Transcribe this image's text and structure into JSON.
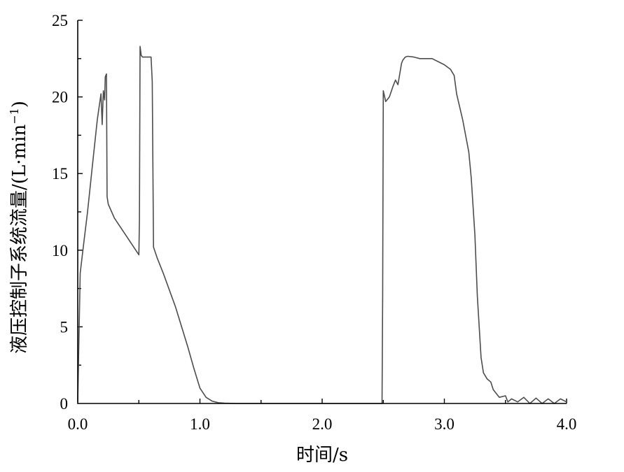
{
  "chart_data": {
    "type": "line",
    "title": "",
    "xlabel": "时间/s",
    "ylabel": "液压控制子系统流量/(L·min",
    "ylabel_sup": "−1",
    "ylabel_close": ")",
    "xlim": [
      0,
      4
    ],
    "ylim": [
      0,
      25
    ],
    "xticks": [
      0,
      1,
      2,
      3,
      4
    ],
    "xtick_labels": [
      "0.0",
      "1.0",
      "2.0",
      "3.0",
      "4.0"
    ],
    "yticks": [
      0,
      5,
      10,
      15,
      20,
      25
    ],
    "ytick_labels": [
      "0",
      "5",
      "10",
      "15",
      "20",
      "25"
    ],
    "grid": false,
    "line_color": "#4d4d4d",
    "series": [
      {
        "x": [
          0.0,
          0.02,
          0.05,
          0.08,
          0.12,
          0.16,
          0.19,
          0.2,
          0.21,
          0.22,
          0.225,
          0.235,
          0.24,
          0.25,
          0.3,
          0.4,
          0.5,
          0.505,
          0.51,
          0.52,
          0.53,
          0.6,
          0.61,
          0.62,
          0.65,
          0.7,
          0.8,
          0.9,
          0.95,
          1.0,
          1.05,
          1.1,
          1.15,
          1.2,
          1.3,
          1.5,
          2.0,
          2.49,
          2.495,
          2.5,
          2.52,
          2.55,
          2.58,
          2.6,
          2.62,
          2.65,
          2.66,
          2.68,
          2.7,
          2.75,
          2.8,
          2.9,
          3.0,
          3.05,
          3.08,
          3.1,
          3.15,
          3.2,
          3.22,
          3.25,
          3.27,
          3.3,
          3.32,
          3.35,
          3.38,
          3.4,
          3.45,
          3.5,
          3.52,
          3.55,
          3.6,
          3.65,
          3.7,
          3.75,
          3.8,
          3.85,
          3.9,
          3.95,
          4.0
        ],
        "y": [
          0.1,
          8.5,
          10.5,
          12.5,
          15.5,
          18.5,
          20.2,
          18.2,
          20.4,
          19.8,
          21.3,
          21.5,
          13.5,
          13.0,
          12.1,
          10.9,
          9.7,
          12.0,
          23.3,
          22.7,
          22.6,
          22.6,
          21.0,
          10.2,
          9.5,
          8.5,
          6.3,
          3.7,
          2.3,
          1.0,
          0.4,
          0.15,
          0.05,
          0.02,
          0.0,
          0.0,
          0.0,
          0.0,
          7.0,
          20.4,
          19.7,
          20.0,
          20.7,
          21.1,
          20.8,
          22.2,
          22.4,
          22.6,
          22.65,
          22.6,
          22.5,
          22.5,
          22.1,
          21.8,
          21.4,
          20.2,
          18.5,
          16.4,
          14.7,
          11.0,
          7.0,
          3.0,
          2.0,
          1.6,
          1.4,
          0.9,
          0.4,
          0.5,
          0.1,
          0.3,
          0.1,
          0.4,
          0.0,
          0.35,
          0.0,
          0.3,
          0.0,
          0.3,
          0.1
        ]
      }
    ]
  }
}
